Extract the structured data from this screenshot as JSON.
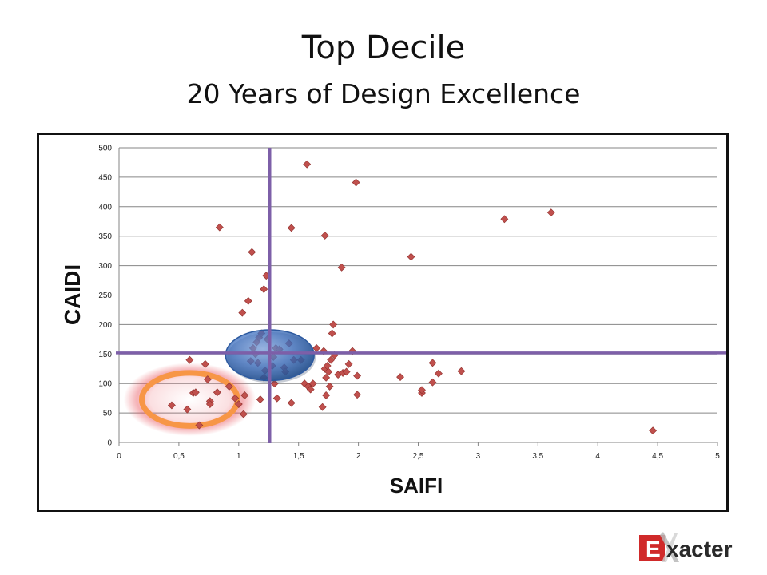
{
  "slide": {
    "title": "Top Decile",
    "subtitle": "20 Years of Design Excellence"
  },
  "logo": {
    "text_initial": "E",
    "text_rest": "xacter",
    "icon": "exacter-logo"
  },
  "colors": {
    "marker": "#c0504d",
    "marker_stroke": "#8e2f2c",
    "gridline": "#868686",
    "threshold_line": "#7d5fa8",
    "orange_ring": "#f79646",
    "orange_glow": "#e8505a",
    "blue_circle": "#3d6fbf",
    "logo_red": "#d02a2a"
  },
  "chart_data": {
    "type": "scatter",
    "xlabel": "SAIFI",
    "ylabel": "CAIDI",
    "xlim": [
      0,
      5
    ],
    "ylim": [
      0,
      500
    ],
    "xticks": [
      "0",
      "0,5",
      "1",
      "1,5",
      "2",
      "2,5",
      "3",
      "3,5",
      "4",
      "4,5",
      "5"
    ],
    "yticks": [
      "0",
      "50",
      "100",
      "150",
      "200",
      "250",
      "300",
      "350",
      "400",
      "450",
      "500"
    ],
    "grid": "horizontal",
    "threshold_lines": {
      "x": 1.26,
      "y": 152
    },
    "highlights": [
      {
        "kind": "orange-ring",
        "x": 0.59,
        "y": 73,
        "rx": 0.4,
        "ry": 45
      },
      {
        "kind": "blue-circle",
        "x": 1.26,
        "y": 148,
        "rx": 0.37,
        "ry": 43
      }
    ],
    "points": [
      [
        0.44,
        63
      ],
      [
        0.57,
        56
      ],
      [
        0.59,
        140
      ],
      [
        0.62,
        84
      ],
      [
        0.64,
        85
      ],
      [
        0.67,
        29
      ],
      [
        0.72,
        133
      ],
      [
        0.74,
        107
      ],
      [
        0.76,
        70
      ],
      [
        0.76,
        65
      ],
      [
        0.82,
        85
      ],
      [
        0.84,
        365
      ],
      [
        0.92,
        95
      ],
      [
        0.97,
        75
      ],
      [
        1.0,
        65
      ],
      [
        1.03,
        220
      ],
      [
        1.04,
        48
      ],
      [
        1.05,
        80
      ],
      [
        1.08,
        240
      ],
      [
        1.1,
        138
      ],
      [
        1.11,
        323
      ],
      [
        1.12,
        160
      ],
      [
        1.14,
        150
      ],
      [
        1.15,
        170
      ],
      [
        1.16,
        135
      ],
      [
        1.17,
        178
      ],
      [
        1.18,
        73
      ],
      [
        1.19,
        185
      ],
      [
        1.21,
        260
      ],
      [
        1.21,
        110
      ],
      [
        1.22,
        122
      ],
      [
        1.23,
        283
      ],
      [
        1.24,
        175
      ],
      [
        1.28,
        130
      ],
      [
        1.29,
        145
      ],
      [
        1.3,
        100
      ],
      [
        1.31,
        160
      ],
      [
        1.32,
        75
      ],
      [
        1.34,
        158
      ],
      [
        1.38,
        127
      ],
      [
        1.39,
        120
      ],
      [
        1.42,
        168
      ],
      [
        1.44,
        364
      ],
      [
        1.44,
        67
      ],
      [
        1.46,
        140
      ],
      [
        1.52,
        140
      ],
      [
        1.55,
        100
      ],
      [
        1.57,
        472
      ],
      [
        1.58,
        95
      ],
      [
        1.6,
        90
      ],
      [
        1.62,
        100
      ],
      [
        1.65,
        160
      ],
      [
        1.7,
        60
      ],
      [
        1.71,
        155
      ],
      [
        1.72,
        351
      ],
      [
        1.72,
        125
      ],
      [
        1.73,
        80
      ],
      [
        1.73,
        110
      ],
      [
        1.74,
        130
      ],
      [
        1.75,
        120
      ],
      [
        1.76,
        95
      ],
      [
        1.77,
        140
      ],
      [
        1.78,
        185
      ],
      [
        1.79,
        200
      ],
      [
        1.8,
        148
      ],
      [
        1.83,
        115
      ],
      [
        1.86,
        297
      ],
      [
        1.87,
        118
      ],
      [
        1.9,
        120
      ],
      [
        1.92,
        133
      ],
      [
        1.95,
        155
      ],
      [
        1.98,
        441
      ],
      [
        1.99,
        113
      ],
      [
        1.99,
        81
      ],
      [
        2.35,
        111
      ],
      [
        2.44,
        315
      ],
      [
        2.53,
        84
      ],
      [
        2.53,
        89
      ],
      [
        2.62,
        102
      ],
      [
        2.62,
        135
      ],
      [
        2.67,
        117
      ],
      [
        2.86,
        121
      ],
      [
        3.22,
        379
      ],
      [
        3.61,
        390
      ],
      [
        4.46,
        20
      ]
    ]
  }
}
